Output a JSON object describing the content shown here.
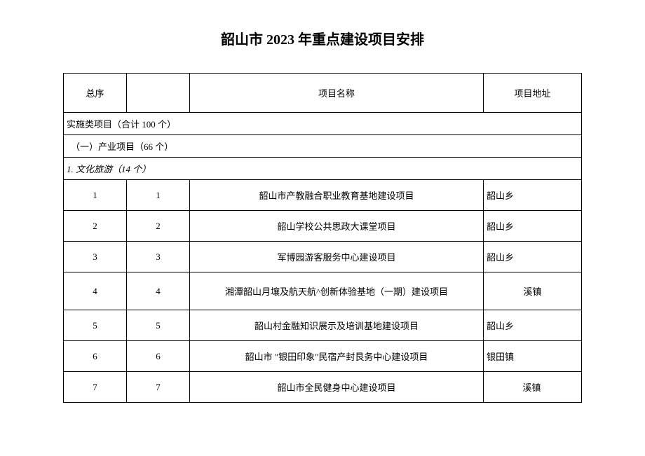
{
  "title": "韶山市 2023 年重点建设项目安排",
  "headers": {
    "col1": "总序",
    "col2": "",
    "col3": "项目名称",
    "col4": "项目地址"
  },
  "sections": {
    "implementation": "实施类项目（合计 100 个）",
    "industry": "（一）产业项目（66 个）",
    "culture": "1. 文化旅游（14 个）"
  },
  "rows": [
    {
      "seq1": "1",
      "seq2": "1",
      "name": "韶山市产教融合职业教育基地建设项目",
      "addr": "韶山乡"
    },
    {
      "seq1": "2",
      "seq2": "2",
      "name": "韶山学校公共思政大课堂项目",
      "addr": "韶山乡"
    },
    {
      "seq1": "3",
      "seq2": "3",
      "name": "军博园游客服务中心建设项目",
      "addr": "韶山乡"
    },
    {
      "seq1": "4",
      "seq2": "4",
      "name": "湘潭韶山月壤及航天航^创新体验基地（一期）建设项目",
      "addr": "溪镇"
    },
    {
      "seq1": "5",
      "seq2": "5",
      "name": "韶山村金融知识展示及培训基地建设项目",
      "addr": "韶山乡"
    },
    {
      "seq1": "6",
      "seq2": "6",
      "name": "韶山市 \"银田印象\"民宿产封艮务中心建设项目",
      "addr": "银田镇"
    },
    {
      "seq1": "7",
      "seq2": "7",
      "name": "韶山市全民健身中心建设项目",
      "addr": "溪镇"
    }
  ],
  "styles": {
    "background_color": "#ffffff",
    "text_color": "#000000",
    "border_color": "#000000",
    "title_fontsize": 20,
    "body_fontsize": 13,
    "col_widths": {
      "col1": 90,
      "col2": 90,
      "col4": 140
    },
    "row_height_header": 56,
    "row_height_section": 28,
    "row_height_data": 44,
    "row_height_tall": 54
  }
}
